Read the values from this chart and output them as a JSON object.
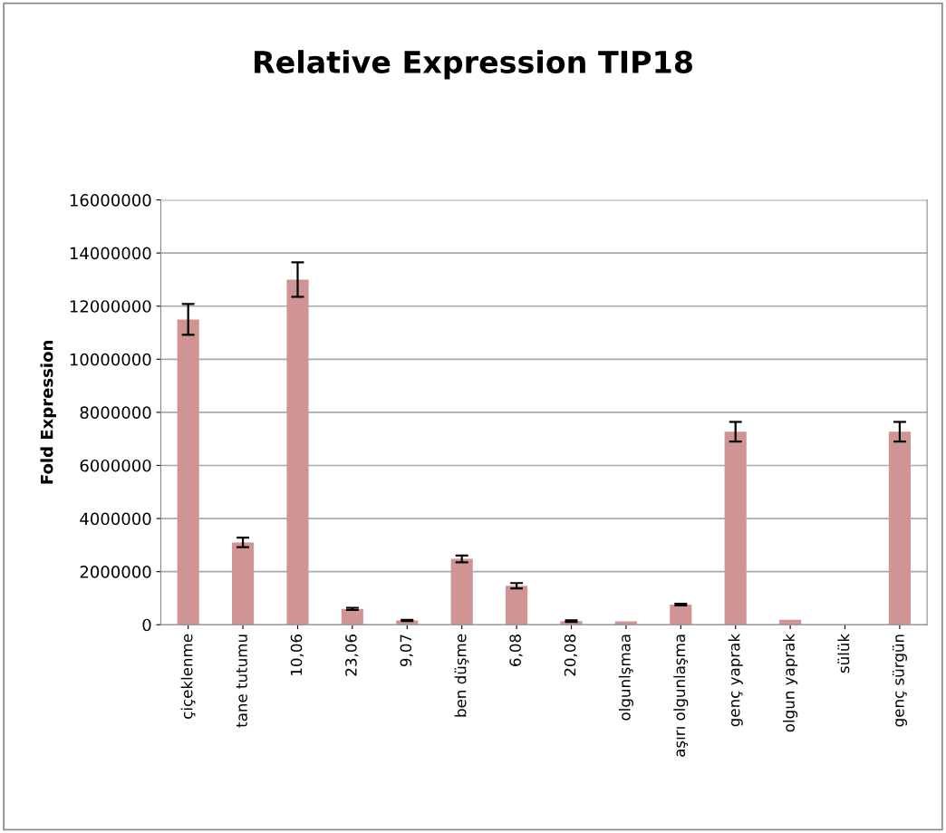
{
  "chart_data": {
    "type": "bar",
    "title": "Relative Expression TIP18",
    "ylabel": "Fold Expression",
    "categories": [
      "çiçeklenme",
      "tane tutumu",
      "10,06",
      "23,06",
      "9,07",
      "ben düşme",
      "6,08",
      "20,08",
      "olgunlşmaa",
      "aşırı olgunlaşma",
      "genç yaprak",
      "olgun yaprak",
      "sülük",
      "genç sürgün"
    ],
    "values": [
      11500000,
      3100000,
      13000000,
      600000,
      160000,
      2480000,
      1470000,
      140000,
      130000,
      760000,
      7270000,
      185000,
      0,
      7270000
    ],
    "errors": [
      580000,
      180000,
      650000,
      40000,
      20000,
      130000,
      100000,
      30000,
      null,
      30000,
      370000,
      null,
      null,
      370000
    ],
    "color": "#d09494",
    "ylim": [
      0,
      16000000
    ],
    "yticks": [
      0,
      2000000,
      4000000,
      6000000,
      8000000,
      10000000,
      12000000,
      14000000,
      16000000
    ],
    "grid": "y"
  }
}
